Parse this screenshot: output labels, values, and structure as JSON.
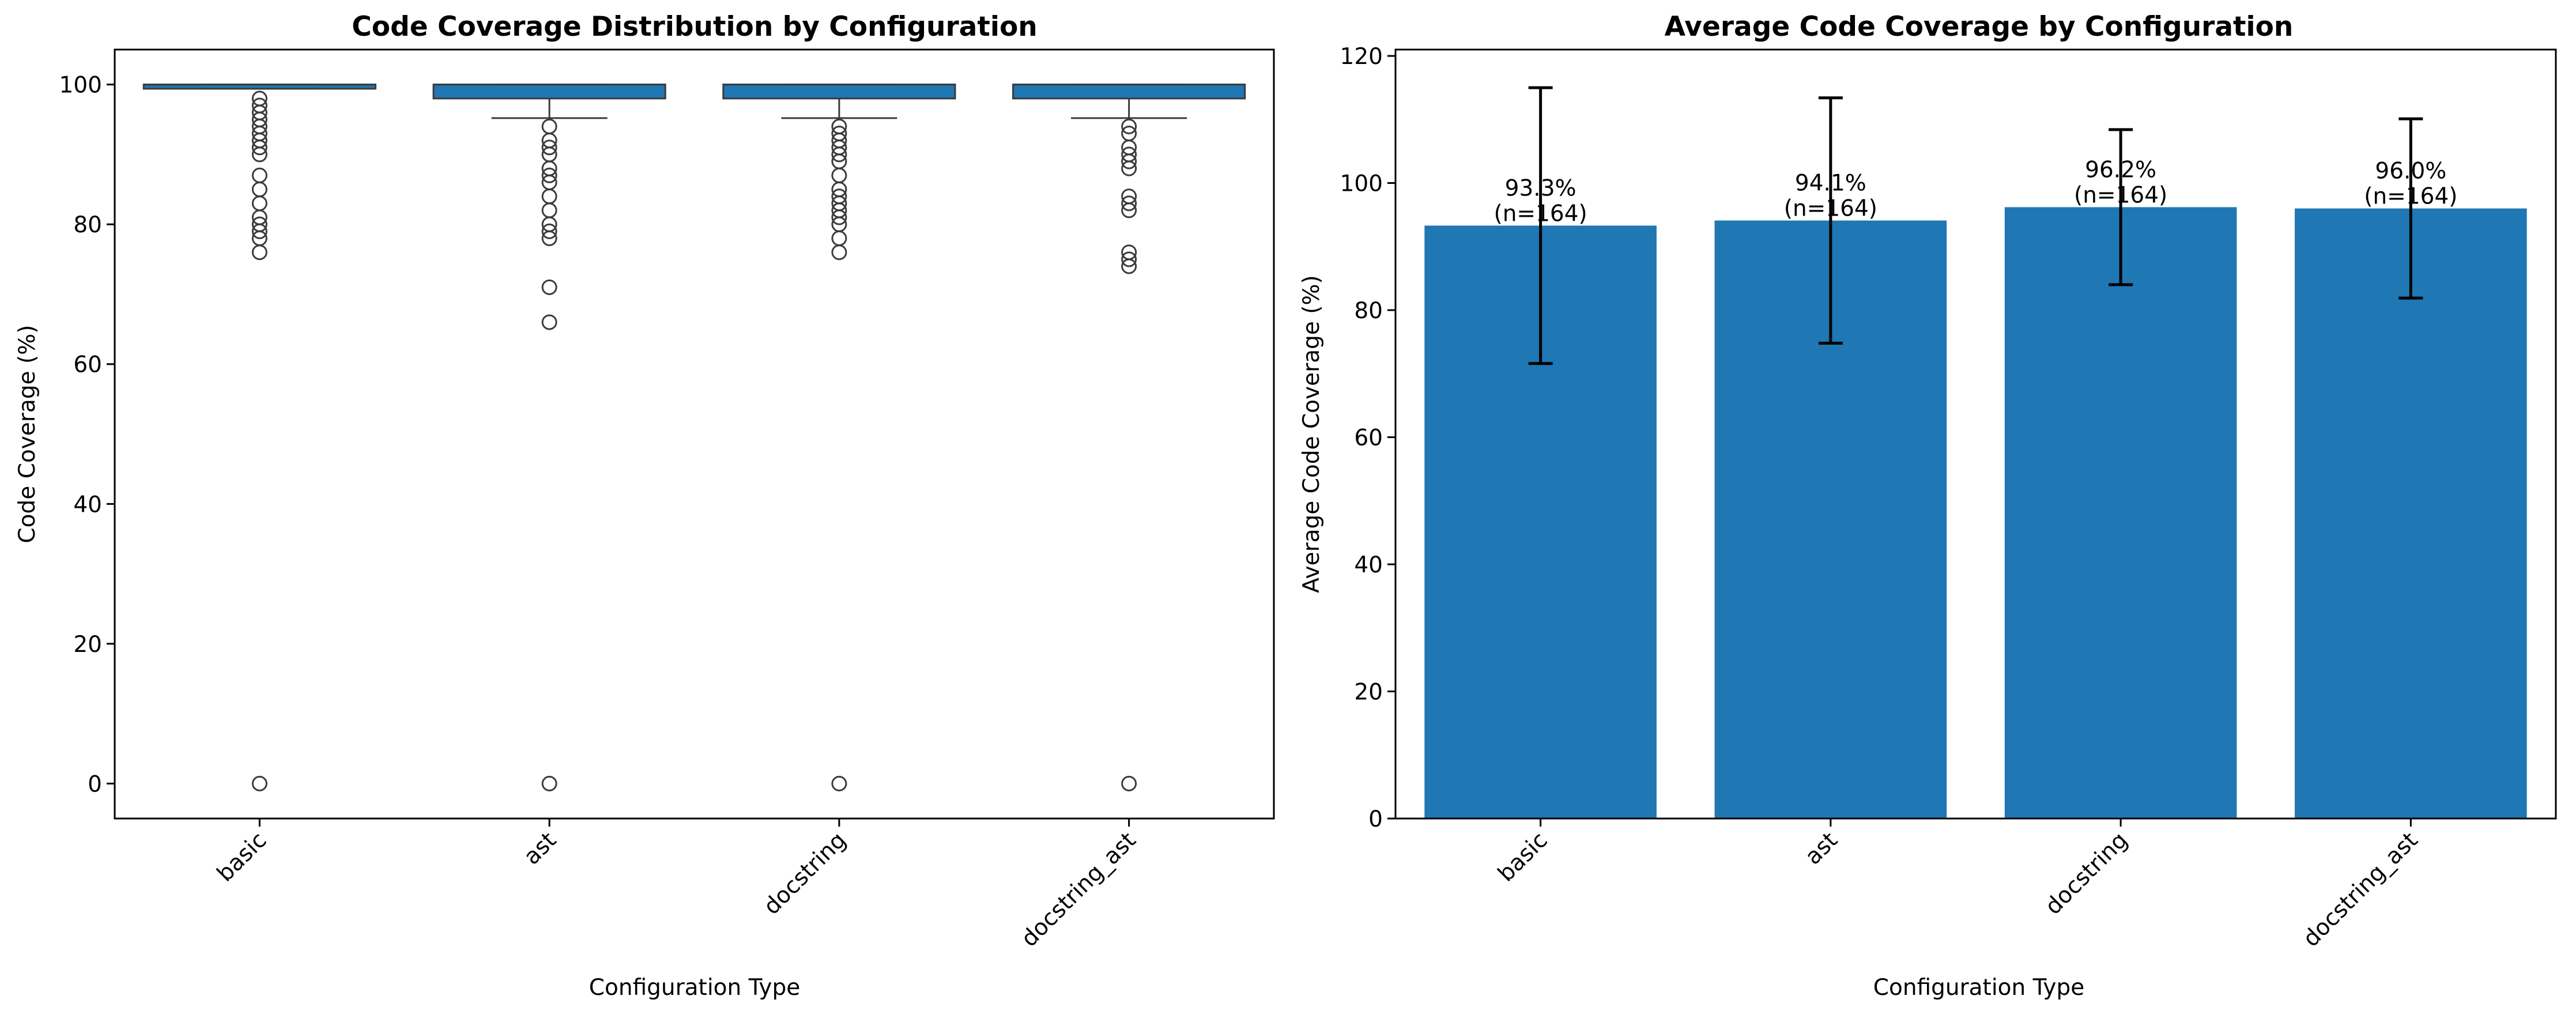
{
  "chart_data": [
    {
      "type": "box",
      "title": "Code Coverage Distribution by Configuration",
      "xlabel": "Configuration Type",
      "ylabel": "Code Coverage (%)",
      "ylim": [
        -5,
        105
      ],
      "yticks": [
        0,
        20,
        40,
        60,
        80,
        100
      ],
      "categories": [
        "basic",
        "ast",
        "docstring",
        "docstring_ast"
      ],
      "box_color": "#1f77b4",
      "boxes": [
        {
          "q1": 99.4,
          "median": 100,
          "q3": 100,
          "whisker_low": 99.4,
          "whisker_high": 100,
          "outliers": [
            98,
            97,
            96,
            95,
            94,
            93,
            92,
            91,
            90,
            87,
            85,
            83,
            81,
            80,
            79,
            78,
            76,
            0
          ]
        },
        {
          "q1": 98,
          "median": 100,
          "q3": 100,
          "whisker_low": 95.2,
          "whisker_high": 100,
          "outliers": [
            94,
            92,
            91,
            90,
            88,
            87,
            86,
            84,
            82,
            80,
            79,
            78,
            71,
            66,
            0
          ]
        },
        {
          "q1": 98,
          "median": 100,
          "q3": 100,
          "whisker_low": 95.2,
          "whisker_high": 100,
          "outliers": [
            94,
            93,
            92,
            91,
            90,
            89,
            87,
            85,
            84,
            83,
            82,
            81,
            80,
            78,
            76,
            0
          ]
        },
        {
          "q1": 98,
          "median": 100,
          "q3": 100,
          "whisker_low": 95.2,
          "whisker_high": 100,
          "outliers": [
            94,
            93,
            91,
            90,
            89,
            88,
            84,
            83,
            82,
            76,
            75,
            74,
            0
          ]
        }
      ]
    },
    {
      "type": "bar",
      "title": "Average Code Coverage by Configuration",
      "xlabel": "Configuration Type",
      "ylabel": "Average Code Coverage (%)",
      "ylim": [
        0,
        121
      ],
      "yticks": [
        0,
        20,
        40,
        60,
        80,
        100,
        120
      ],
      "categories": [
        "basic",
        "ast",
        "docstring",
        "docstring_ast"
      ],
      "values": [
        93.3,
        94.1,
        96.2,
        96.0
      ],
      "errors": [
        21.7,
        19.3,
        12.2,
        14.1
      ],
      "labels": [
        "93.3%\n(n=164)",
        "94.1%\n(n=164)",
        "96.2%\n(n=164)",
        "96.0%\n(n=164)"
      ],
      "bar_color": "#1f77b4"
    }
  ]
}
